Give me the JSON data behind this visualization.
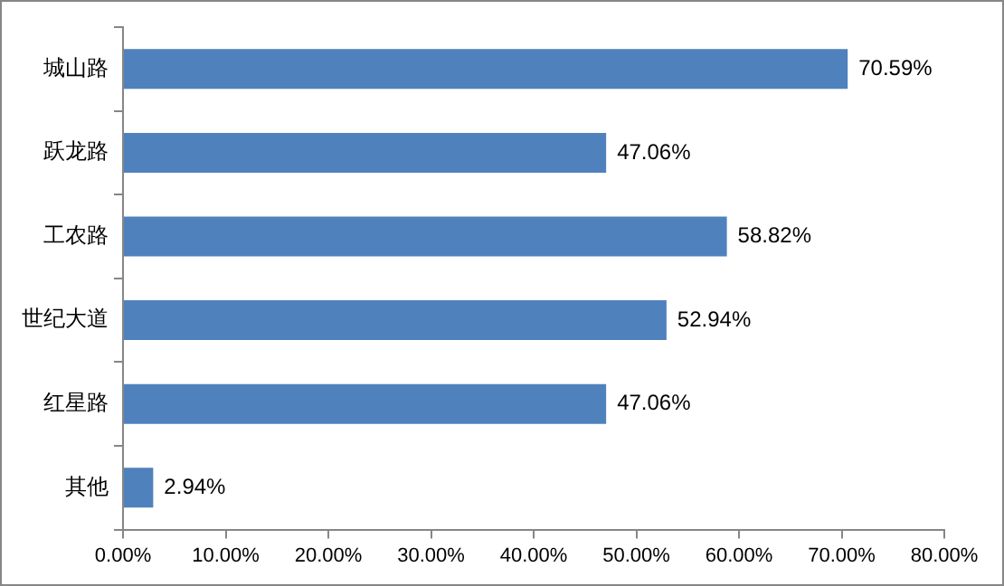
{
  "chart_data": {
    "type": "bar",
    "orientation": "horizontal",
    "categories": [
      "城山路",
      "跃龙路",
      "工农路",
      "世纪大道",
      "红星路",
      "其他"
    ],
    "values": [
      70.59,
      47.06,
      58.82,
      52.94,
      47.06,
      2.94
    ],
    "value_labels": [
      "70.59%",
      "47.06%",
      "58.82%",
      "52.94%",
      "47.06%",
      "2.94%"
    ],
    "color": "#4f81bd",
    "xlim": [
      0,
      80
    ],
    "xticks": [
      {
        "value": 0,
        "label": "0.00%"
      },
      {
        "value": 10,
        "label": "10.00%"
      },
      {
        "value": 20,
        "label": "20.00%"
      },
      {
        "value": 30,
        "label": "30.00%"
      },
      {
        "value": 40,
        "label": "40.00%"
      },
      {
        "value": 50,
        "label": "50.00%"
      },
      {
        "value": 60,
        "label": "60.00%"
      },
      {
        "value": 70,
        "label": "70.00%"
      },
      {
        "value": 80,
        "label": "80.00%"
      }
    ],
    "grid": false,
    "legend": false
  }
}
